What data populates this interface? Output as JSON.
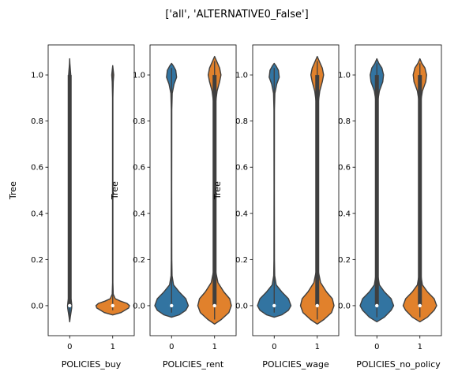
{
  "figure": {
    "title": "['all', 'ALTERNATIVE0_False']"
  },
  "colors": {
    "blue": "#3274a1",
    "orange": "#e1812c",
    "outline": "#3f3f3f"
  },
  "chart_data": [
    {
      "type": "violin",
      "xlabel": "POLICIES_buy",
      "ylabel": "Tree",
      "categories": [
        "0",
        "1"
      ],
      "ylim": [
        -0.13,
        1.13
      ],
      "yticks": [
        "0.0",
        "0.2",
        "0.4",
        "0.6",
        "0.8",
        "1.0"
      ],
      "violins": [
        {
          "category": "0",
          "color": "blue",
          "min": -0.07,
          "max": 1.07,
          "median": 0.0,
          "q1": 0.0,
          "q3": 1.0,
          "max_width": 0.055,
          "profile": [
            [
              -0.07,
              0.0
            ],
            [
              -0.05,
              0.25
            ],
            [
              -0.03,
              0.55
            ],
            [
              -0.01,
              0.85
            ],
            [
              0.0,
              0.9
            ],
            [
              0.02,
              0.7
            ],
            [
              0.04,
              0.35
            ],
            [
              0.06,
              0.12
            ],
            [
              0.1,
              0.06
            ],
            [
              0.2,
              0.05
            ],
            [
              0.3,
              0.05
            ],
            [
              0.4,
              0.05
            ],
            [
              0.5,
              0.05
            ],
            [
              0.6,
              0.05
            ],
            [
              0.7,
              0.05
            ],
            [
              0.8,
              0.05
            ],
            [
              0.9,
              0.06
            ],
            [
              0.95,
              0.12
            ],
            [
              0.98,
              0.35
            ],
            [
              1.0,
              0.45
            ],
            [
              1.02,
              0.3
            ],
            [
              1.05,
              0.08
            ],
            [
              1.07,
              0.0
            ]
          ]
        },
        {
          "category": "1",
          "color": "orange",
          "min": -0.04,
          "max": 1.04,
          "median": 0.0,
          "q1": 0.0,
          "q3": 0.0,
          "max_width": 0.39,
          "profile": [
            [
              -0.04,
              0.0
            ],
            [
              -0.03,
              0.5
            ],
            [
              -0.01,
              0.95
            ],
            [
              0.0,
              1.0
            ],
            [
              0.01,
              0.85
            ],
            [
              0.02,
              0.45
            ],
            [
              0.03,
              0.15
            ],
            [
              0.05,
              0.03
            ],
            [
              0.1,
              0.01
            ],
            [
              0.5,
              0.01
            ],
            [
              0.9,
              0.01
            ],
            [
              0.97,
              0.03
            ],
            [
              1.0,
              0.06
            ],
            [
              1.02,
              0.03
            ],
            [
              1.04,
              0.0
            ]
          ]
        }
      ]
    },
    {
      "type": "violin",
      "xlabel": "POLICIES_rent",
      "ylabel": "Tree",
      "categories": [
        "0",
        "1"
      ],
      "ylim": [
        -0.13,
        1.13
      ],
      "yticks": [
        "0.0",
        "0.2",
        "0.4",
        "0.6",
        "0.8",
        "1.0"
      ],
      "violins": [
        {
          "category": "0",
          "color": "blue",
          "min": -0.05,
          "max": 1.05,
          "median": 0.0,
          "q1": 0.0,
          "q3": 0.0,
          "max_width": 0.39,
          "profile": [
            [
              -0.05,
              0.0
            ],
            [
              -0.04,
              0.45
            ],
            [
              -0.02,
              0.85
            ],
            [
              0.0,
              1.0
            ],
            [
              0.03,
              0.85
            ],
            [
              0.06,
              0.45
            ],
            [
              0.09,
              0.12
            ],
            [
              0.13,
              0.03
            ],
            [
              0.2,
              0.015
            ],
            [
              0.5,
              0.01
            ],
            [
              0.85,
              0.015
            ],
            [
              0.92,
              0.04
            ],
            [
              0.96,
              0.15
            ],
            [
              0.99,
              0.3
            ],
            [
              1.02,
              0.25
            ],
            [
              1.04,
              0.1
            ],
            [
              1.05,
              0.0
            ]
          ]
        },
        {
          "category": "1",
          "color": "orange",
          "min": -0.08,
          "max": 1.08,
          "median": 0.0,
          "q1": 0.0,
          "q3": 1.0,
          "max_width": 0.39,
          "profile": [
            [
              -0.08,
              0.0
            ],
            [
              -0.06,
              0.4
            ],
            [
              -0.03,
              0.85
            ],
            [
              0.0,
              1.0
            ],
            [
              0.03,
              0.9
            ],
            [
              0.06,
              0.55
            ],
            [
              0.1,
              0.2
            ],
            [
              0.15,
              0.06
            ],
            [
              0.25,
              0.04
            ],
            [
              0.5,
              0.03
            ],
            [
              0.75,
              0.04
            ],
            [
              0.88,
              0.06
            ],
            [
              0.93,
              0.15
            ],
            [
              0.97,
              0.3
            ],
            [
              1.0,
              0.38
            ],
            [
              1.03,
              0.3
            ],
            [
              1.06,
              0.12
            ],
            [
              1.08,
              0.0
            ]
          ]
        }
      ]
    },
    {
      "type": "violin",
      "xlabel": "POLICIES_wage",
      "ylabel": "Tree",
      "categories": [
        "0",
        "1"
      ],
      "ylim": [
        -0.13,
        1.13
      ],
      "yticks": [
        "0.0",
        "0.2",
        "0.4",
        "0.6",
        "0.8",
        "1.0"
      ],
      "violins": [
        {
          "category": "0",
          "color": "blue",
          "min": -0.05,
          "max": 1.05,
          "median": 0.0,
          "q1": 0.0,
          "q3": 0.0,
          "max_width": 0.39,
          "profile": [
            [
              -0.05,
              0.0
            ],
            [
              -0.04,
              0.45
            ],
            [
              -0.02,
              0.85
            ],
            [
              0.0,
              1.0
            ],
            [
              0.03,
              0.85
            ],
            [
              0.06,
              0.45
            ],
            [
              0.09,
              0.12
            ],
            [
              0.13,
              0.03
            ],
            [
              0.2,
              0.015
            ],
            [
              0.5,
              0.01
            ],
            [
              0.85,
              0.015
            ],
            [
              0.92,
              0.04
            ],
            [
              0.96,
              0.15
            ],
            [
              0.99,
              0.3
            ],
            [
              1.02,
              0.25
            ],
            [
              1.04,
              0.1
            ],
            [
              1.05,
              0.0
            ]
          ]
        },
        {
          "category": "1",
          "color": "orange",
          "min": -0.08,
          "max": 1.08,
          "median": 0.0,
          "q1": 0.0,
          "q3": 1.0,
          "max_width": 0.39,
          "profile": [
            [
              -0.08,
              0.0
            ],
            [
              -0.06,
              0.4
            ],
            [
              -0.03,
              0.85
            ],
            [
              0.0,
              1.0
            ],
            [
              0.03,
              0.9
            ],
            [
              0.06,
              0.55
            ],
            [
              0.1,
              0.2
            ],
            [
              0.15,
              0.06
            ],
            [
              0.25,
              0.04
            ],
            [
              0.5,
              0.03
            ],
            [
              0.75,
              0.04
            ],
            [
              0.88,
              0.06
            ],
            [
              0.93,
              0.15
            ],
            [
              0.97,
              0.3
            ],
            [
              1.0,
              0.38
            ],
            [
              1.03,
              0.3
            ],
            [
              1.06,
              0.12
            ],
            [
              1.08,
              0.0
            ]
          ]
        }
      ]
    },
    {
      "type": "violin",
      "xlabel": "POLICIES_no_policy",
      "ylabel": "",
      "categories": [
        "0",
        "1"
      ],
      "ylim": [
        -0.13,
        1.13
      ],
      "yticks": [
        "0.0",
        "0.2",
        "0.4",
        "0.6",
        "0.8",
        "1.0"
      ],
      "violins": [
        {
          "category": "0",
          "color": "blue",
          "min": -0.07,
          "max": 1.07,
          "median": 0.0,
          "q1": 0.0,
          "q3": 1.0,
          "max_width": 0.39,
          "profile": [
            [
              -0.07,
              0.0
            ],
            [
              -0.05,
              0.45
            ],
            [
              -0.02,
              0.85
            ],
            [
              0.0,
              1.0
            ],
            [
              0.03,
              0.85
            ],
            [
              0.06,
              0.45
            ],
            [
              0.09,
              0.15
            ],
            [
              0.14,
              0.04
            ],
            [
              0.25,
              0.015
            ],
            [
              0.5,
              0.01
            ],
            [
              0.8,
              0.015
            ],
            [
              0.88,
              0.04
            ],
            [
              0.93,
              0.15
            ],
            [
              0.97,
              0.35
            ],
            [
              1.0,
              0.4
            ],
            [
              1.03,
              0.3
            ],
            [
              1.05,
              0.12
            ],
            [
              1.07,
              0.0
            ]
          ]
        },
        {
          "category": "1",
          "color": "orange",
          "min": -0.07,
          "max": 1.07,
          "median": 0.0,
          "q1": 0.0,
          "q3": 1.0,
          "max_width": 0.39,
          "profile": [
            [
              -0.07,
              0.0
            ],
            [
              -0.05,
              0.45
            ],
            [
              -0.02,
              0.85
            ],
            [
              0.0,
              1.0
            ],
            [
              0.03,
              0.85
            ],
            [
              0.06,
              0.45
            ],
            [
              0.09,
              0.15
            ],
            [
              0.14,
              0.04
            ],
            [
              0.25,
              0.015
            ],
            [
              0.5,
              0.01
            ],
            [
              0.8,
              0.015
            ],
            [
              0.88,
              0.04
            ],
            [
              0.93,
              0.15
            ],
            [
              0.97,
              0.35
            ],
            [
              1.0,
              0.4
            ],
            [
              1.03,
              0.3
            ],
            [
              1.05,
              0.12
            ],
            [
              1.07,
              0.0
            ]
          ]
        }
      ]
    }
  ]
}
